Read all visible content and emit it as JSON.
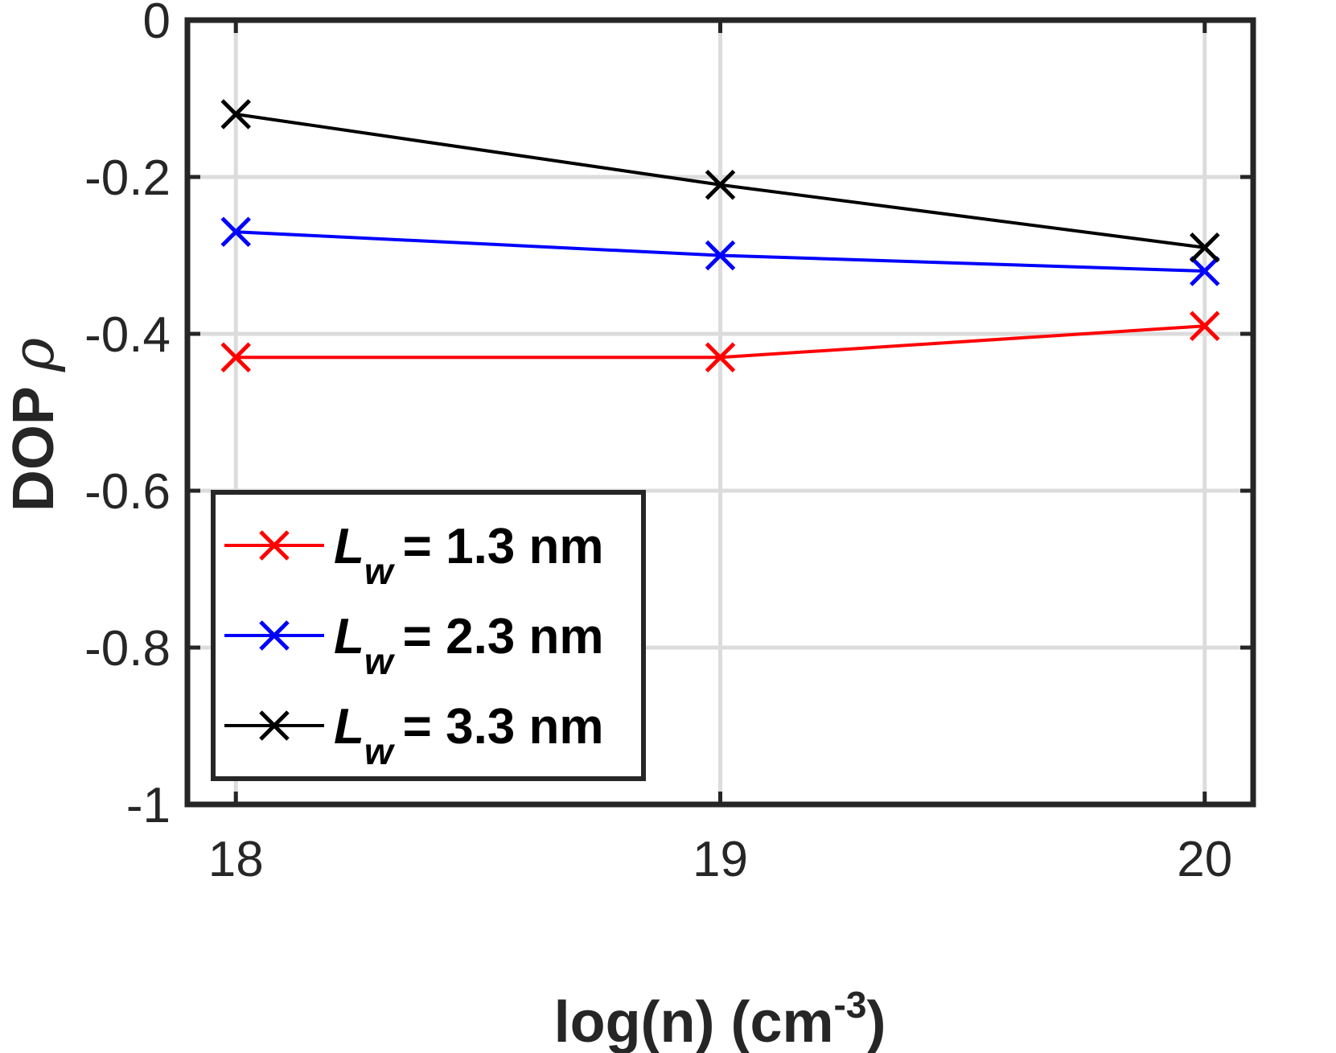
{
  "chart_data": {
    "type": "line",
    "xlabel": "log(n) (cm",
    "xlabel_sup": "-3",
    "xlabel_end": ")",
    "ylabel": "DOP",
    "ylabel_symbol": "ρ",
    "xlim": [
      17.9,
      20.1
    ],
    "ylim": [
      -1,
      0
    ],
    "x_ticks": [
      18,
      19,
      20
    ],
    "x_tick_labels": [
      "18",
      "19",
      "20"
    ],
    "y_ticks": [
      0,
      -0.2,
      -0.4,
      -0.6,
      -0.8,
      -1
    ],
    "y_tick_labels": [
      "0",
      "-0.2",
      "-0.4",
      "-0.6",
      "-0.8",
      "-1"
    ],
    "grid": true,
    "legend_location": "bottom-left",
    "marker": "x",
    "x": [
      18,
      19,
      20
    ],
    "series": [
      {
        "name": "= 1.3 nm",
        "symbol": "L",
        "subscript": "w",
        "color": "#ff0000",
        "values": [
          -0.43,
          -0.43,
          -0.39
        ]
      },
      {
        "name": "= 2.3 nm",
        "symbol": "L",
        "subscript": "w",
        "color": "#0000ff",
        "values": [
          -0.27,
          -0.3,
          -0.32
        ]
      },
      {
        "name": "= 3.3 nm",
        "symbol": "L",
        "subscript": "w",
        "color": "#000000",
        "values": [
          -0.12,
          -0.21,
          -0.29
        ]
      }
    ]
  }
}
